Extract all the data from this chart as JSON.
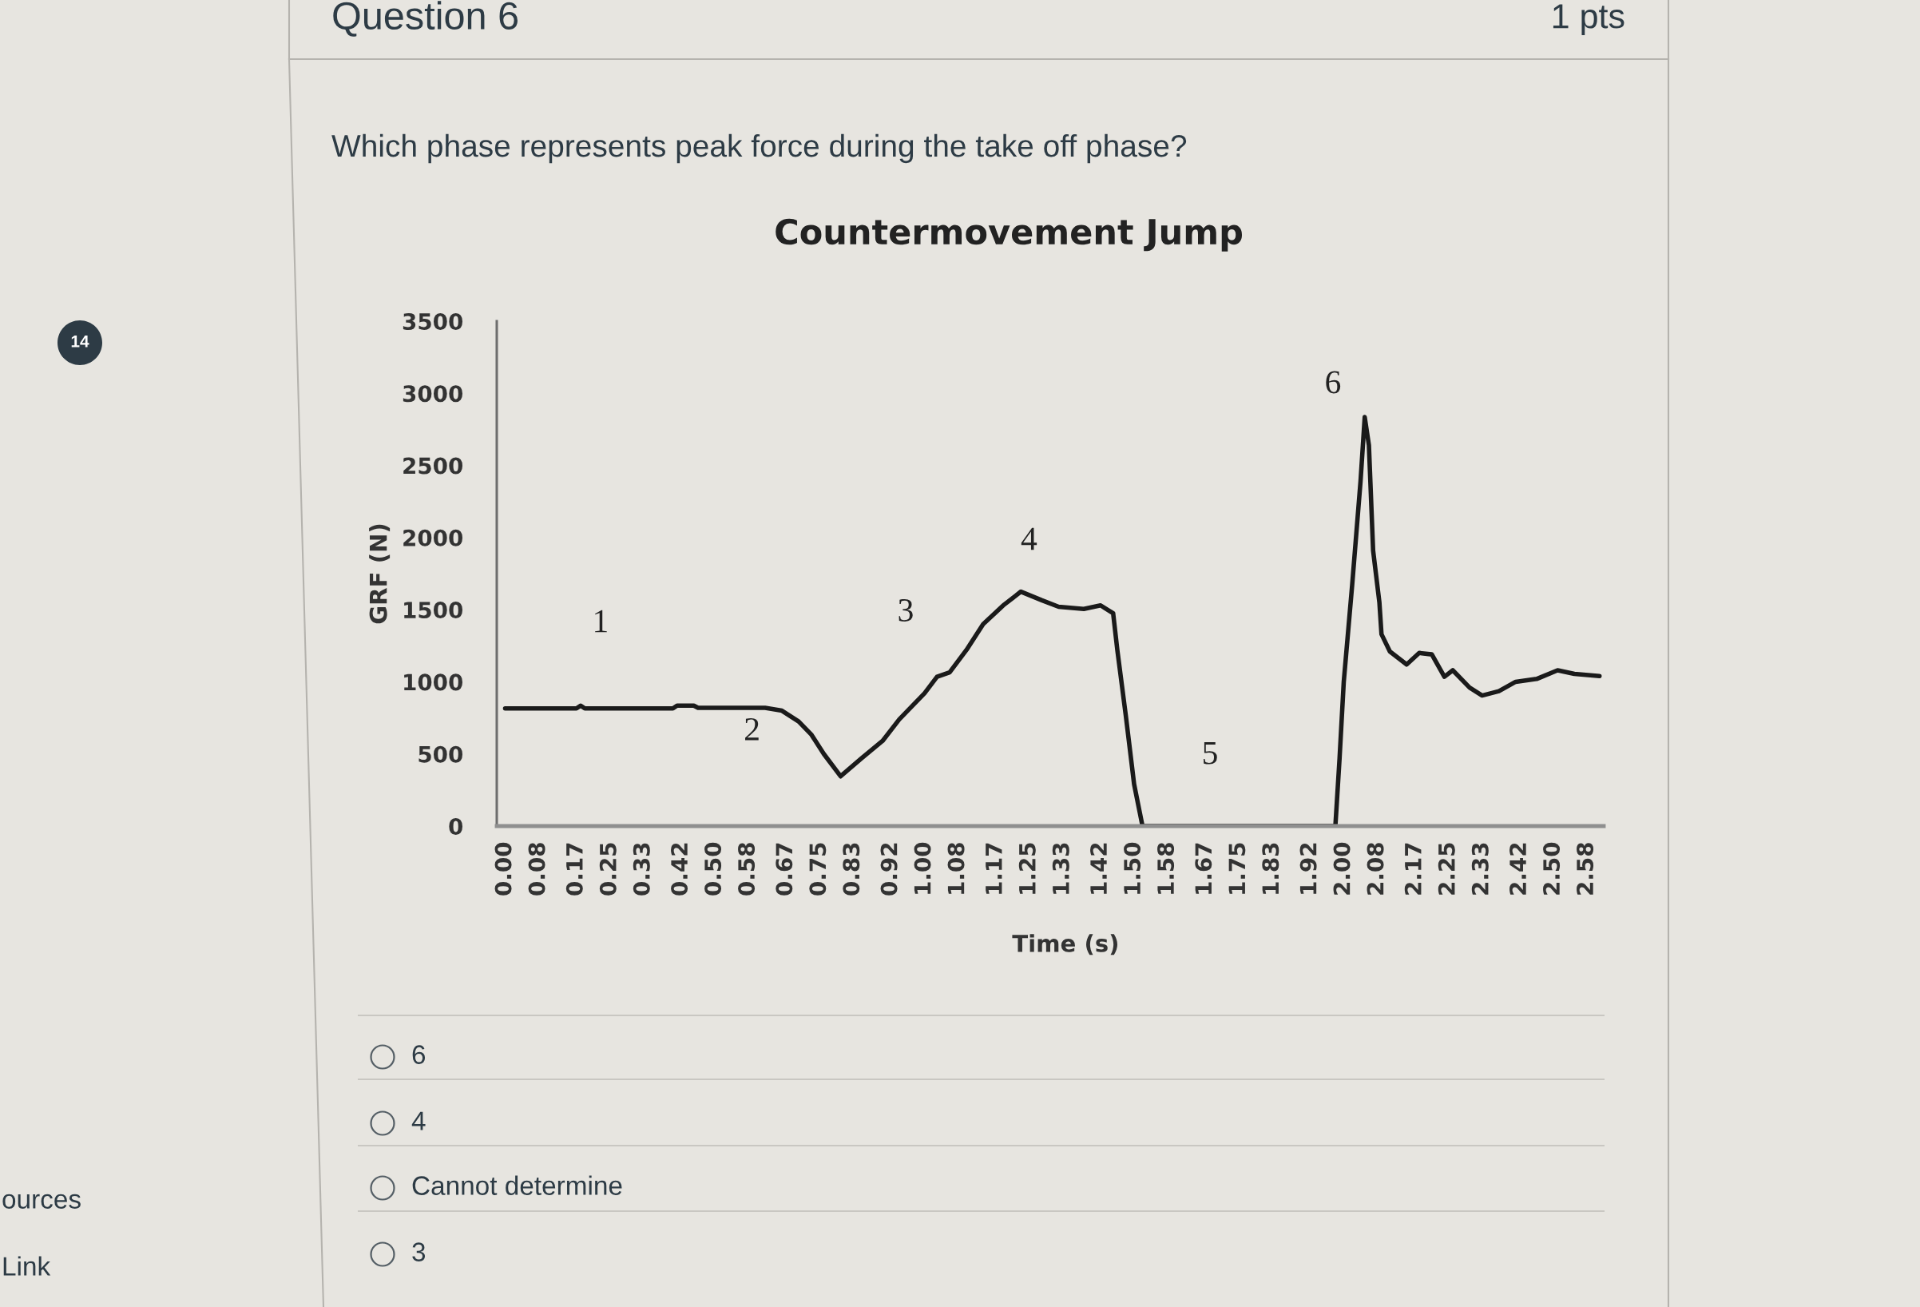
{
  "chart_data": {
    "type": "line",
    "title": "Countermovement Jump",
    "xlabel": "Time (s)",
    "ylabel": "GRF (N)",
    "x": [
      0,
      0.17,
      0.18,
      0.19,
      0.4,
      0.41,
      0.45,
      0.46,
      0.62,
      0.66,
      0.7,
      0.73,
      0.76,
      0.8,
      0.85,
      0.9,
      0.94,
      0.97,
      1.0,
      1.03,
      1.06,
      1.1,
      1.14,
      1.19,
      1.23,
      1.28,
      1.32,
      1.38,
      1.42,
      1.45,
      1.46,
      1.48,
      1.5,
      1.52,
      1.98,
      1.99,
      2.0,
      2.02,
      2.04,
      2.05,
      2.06,
      2.07,
      2.085,
      2.09,
      2.11,
      2.15,
      2.18,
      2.21,
      2.24,
      2.26,
      2.3,
      2.33,
      2.37,
      2.41,
      2.46,
      2.51,
      2.55,
      2.61
    ],
    "values": [
      815,
      815,
      835,
      815,
      815,
      835,
      835,
      820,
      820,
      800,
      725,
      635,
      500,
      345,
      470,
      590,
      740,
      830,
      920,
      1035,
      1065,
      1220,
      1400,
      1535,
      1625,
      1565,
      1520,
      1505,
      1530,
      1475,
      1220,
      770,
      290,
      0,
      0,
      470,
      1000,
      1670,
      2390,
      2835,
      2640,
      1910,
      1550,
      1330,
      1210,
      1120,
      1200,
      1190,
      1035,
      1080,
      960,
      905,
      935,
      1000,
      1020,
      1080,
      1055,
      1040
    ],
    "color": "#1a1a1a",
    "xlim": [
      -0.02,
      2.62
    ],
    "ylim": [
      0,
      3500
    ],
    "xticks": [
      {
        "value": 0,
        "label": "0.00"
      },
      0.08,
      0.17,
      0.25,
      0.33,
      0.42,
      {
        "value": 0.5,
        "label": "0.50"
      },
      0.58,
      0.67,
      0.75,
      0.83,
      0.92,
      {
        "value": 1,
        "label": "1.00"
      },
      1.08,
      1.17,
      1.25,
      1.33,
      1.42,
      {
        "value": 1.5,
        "label": "1.50"
      },
      1.58,
      1.67,
      1.75,
      1.83,
      1.92,
      {
        "value": 2,
        "label": "2.00"
      },
      2.08,
      2.17,
      2.25,
      2.33,
      2.42,
      {
        "value": 2.5,
        "label": "2.50"
      },
      2.58
    ],
    "yticks": [
      0,
      500,
      1000,
      1500,
      2000,
      2500,
      3000,
      3500
    ],
    "annotations": [
      "Question 6",
      "1 pts",
      "Which phase represents peak force during the take off phase?",
      "1",
      "2",
      "3",
      "4",
      "5",
      "6",
      "6",
      "4",
      "Cannot determine",
      "3",
      "14",
      "ources",
      "Link"
    ]
  }
}
